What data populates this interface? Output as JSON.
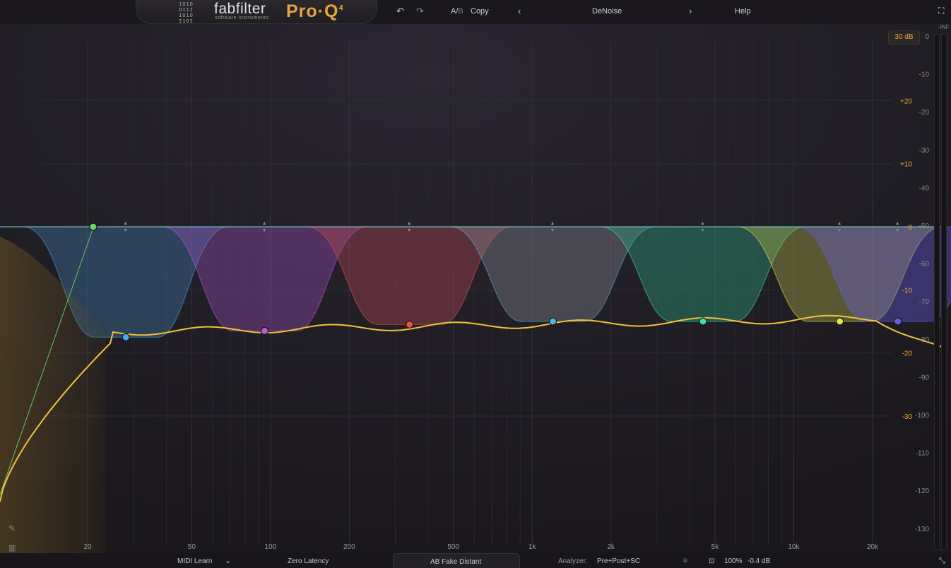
{
  "header": {
    "brand": "fabfilter",
    "brand_sub": "software instruments",
    "product": "Pro·Q",
    "product_version": "4",
    "ab_label": "A/",
    "ab_b": "B",
    "copy_label": "Copy",
    "preset_name": "DeNoise",
    "help_label": "Help"
  },
  "display": {
    "range_label": "30 dB",
    "inf_label": "-INF"
  },
  "chart_data": {
    "type": "line",
    "x_ticks": [
      "20",
      "50",
      "100",
      "200",
      "500",
      "1k",
      "2k",
      "5k",
      "10k",
      "20k"
    ],
    "eq_gain_ticks": [
      "+20",
      "+10",
      "0",
      "-10",
      "-20",
      "-30"
    ],
    "analyzer_ticks": [
      "0",
      "-10",
      "-20",
      "-30",
      "-40",
      "-50",
      "-60",
      "-70",
      "-80",
      "-90",
      "-100",
      "-110",
      "-120",
      "-130"
    ],
    "bands": [
      {
        "freq": 21,
        "gain": 0,
        "color": "#66d96a",
        "type": "high-cut"
      },
      {
        "freq": 28,
        "gain": -17.5,
        "color": "#4fa6e8"
      },
      {
        "freq": 95,
        "gain": -16.5,
        "color": "#b65cd8"
      },
      {
        "freq": 340,
        "gain": -15.5,
        "color": "#e8514a"
      },
      {
        "freq": 1200,
        "gain": -15,
        "color": "#4fb4ec"
      },
      {
        "freq": 4500,
        "gain": -15,
        "color": "#3ee4a4"
      },
      {
        "freq": 15000,
        "gain": -15,
        "color": "#e2e84a"
      },
      {
        "freq": 25000,
        "gain": -15,
        "color": "#6a5ce4"
      }
    ]
  },
  "footer": {
    "midi_learn": "MIDI Learn",
    "latency": "Zero Latency",
    "preset": "AB Fake Distant",
    "analyzer_label": "Analyzer:",
    "analyzer_value": "Pre+Post+SC",
    "zoom": "100%",
    "output_gain": "-0.4 dB"
  }
}
